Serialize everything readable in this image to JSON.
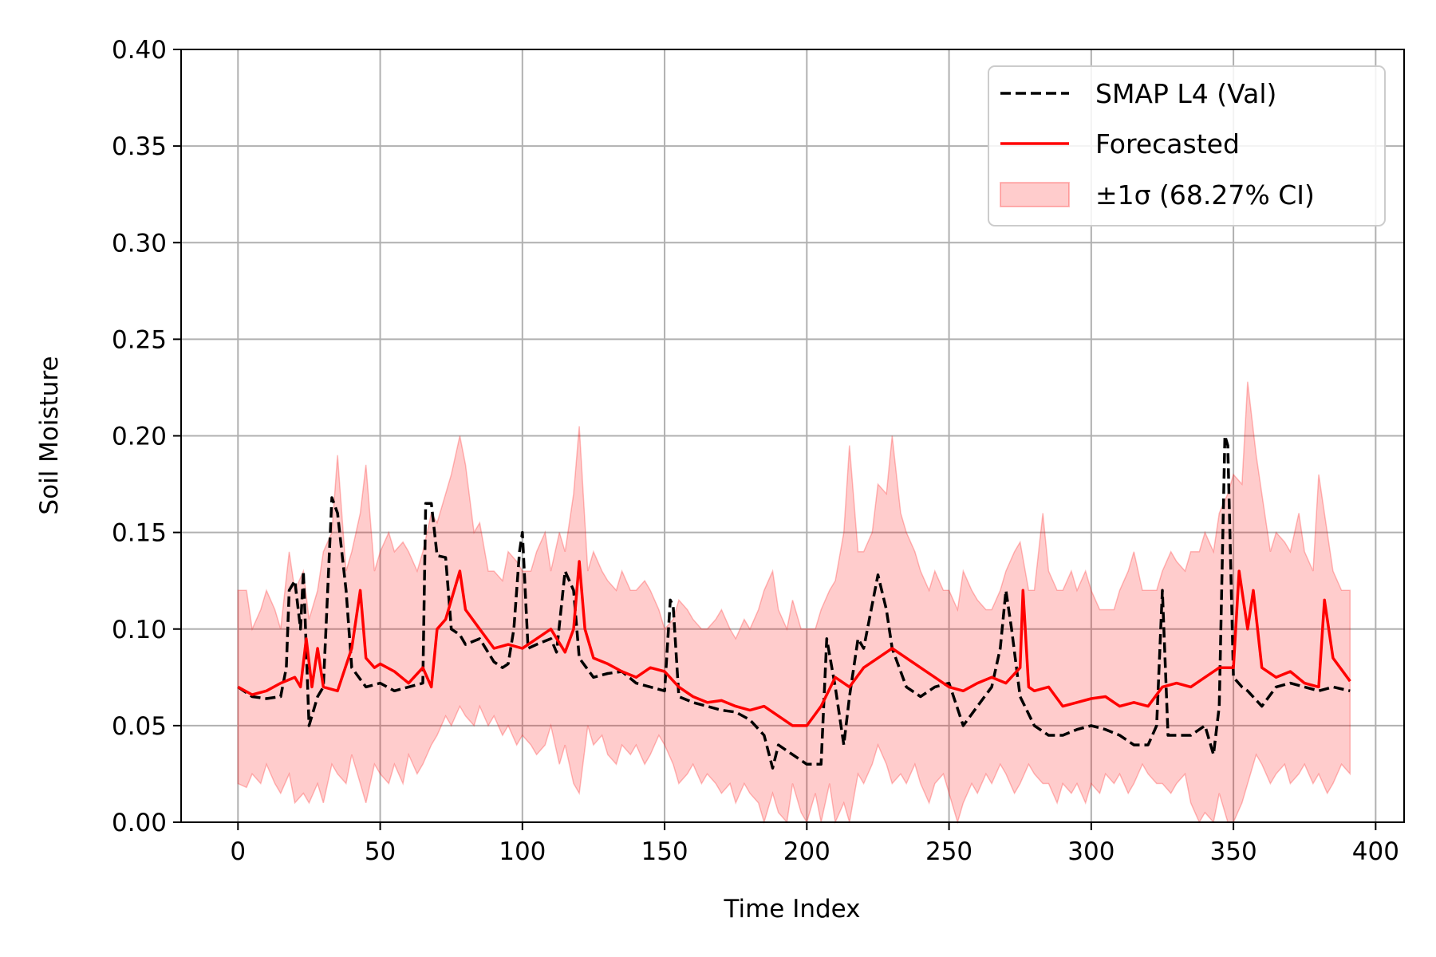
{
  "chart_data": {
    "type": "line",
    "title": "",
    "xlabel": "Time Index",
    "ylabel": "Soil Moisture",
    "xlim": [
      -20,
      410
    ],
    "ylim": [
      0.0,
      0.4
    ],
    "x_ticks": [
      0,
      50,
      100,
      150,
      200,
      250,
      300,
      350,
      400
    ],
    "y_ticks": [
      0.0,
      0.05,
      0.1,
      0.15,
      0.2,
      0.25,
      0.3,
      0.35,
      0.4
    ],
    "x_tick_labels": [
      "0",
      "50",
      "100",
      "150",
      "200",
      "250",
      "300",
      "350",
      "400"
    ],
    "y_tick_labels": [
      "0.00",
      "0.05",
      "0.10",
      "0.15",
      "0.20",
      "0.25",
      "0.30",
      "0.35",
      "0.40"
    ],
    "grid": true,
    "legend_position": "top-right",
    "colors": {
      "validation": "#000000",
      "forecast": "#ff0000",
      "band": "#ff0000"
    },
    "series": [
      {
        "name": "SMAP L4 (Val)",
        "style": "dashed",
        "x": [
          0,
          5,
          10,
          15,
          17,
          18,
          20,
          22,
          23,
          25,
          28,
          30,
          33,
          35,
          38,
          40,
          45,
          50,
          55,
          60,
          65,
          66,
          68,
          70,
          73,
          75,
          78,
          80,
          85,
          90,
          93,
          95,
          97,
          99,
          100,
          102,
          105,
          110,
          112,
          115,
          118,
          120,
          125,
          130,
          135,
          140,
          145,
          150,
          152,
          153,
          155,
          160,
          165,
          170,
          175,
          180,
          185,
          188,
          190,
          195,
          200,
          205,
          207,
          210,
          213,
          215,
          218,
          220,
          225,
          228,
          230,
          235,
          240,
          245,
          250,
          255,
          260,
          265,
          268,
          270,
          272,
          275,
          280,
          285,
          290,
          295,
          300,
          305,
          310,
          315,
          320,
          323,
          325,
          327,
          330,
          335,
          340,
          343,
          345,
          347,
          348,
          350,
          353,
          355,
          360,
          365,
          370,
          375,
          380,
          385,
          391
        ],
        "y": [
          0.07,
          0.065,
          0.064,
          0.065,
          0.08,
          0.12,
          0.125,
          0.1,
          0.13,
          0.05,
          0.065,
          0.07,
          0.168,
          0.16,
          0.12,
          0.08,
          0.07,
          0.072,
          0.068,
          0.07,
          0.072,
          0.165,
          0.165,
          0.138,
          0.137,
          0.1,
          0.097,
          0.092,
          0.095,
          0.083,
          0.08,
          0.082,
          0.1,
          0.14,
          0.15,
          0.09,
          0.092,
          0.095,
          0.088,
          0.13,
          0.12,
          0.085,
          0.075,
          0.077,
          0.078,
          0.072,
          0.07,
          0.068,
          0.115,
          0.112,
          0.065,
          0.062,
          0.06,
          0.058,
          0.057,
          0.053,
          0.045,
          0.028,
          0.04,
          0.035,
          0.03,
          0.03,
          0.095,
          0.07,
          0.04,
          0.065,
          0.095,
          0.09,
          0.128,
          0.11,
          0.09,
          0.07,
          0.065,
          0.07,
          0.072,
          0.05,
          0.06,
          0.07,
          0.09,
          0.12,
          0.1,
          0.065,
          0.05,
          0.045,
          0.045,
          0.048,
          0.05,
          0.048,
          0.045,
          0.04,
          0.04,
          0.05,
          0.12,
          0.045,
          0.045,
          0.045,
          0.05,
          0.035,
          0.06,
          0.2,
          0.195,
          0.075,
          0.07,
          0.068,
          0.06,
          0.07,
          0.072,
          0.07,
          0.068,
          0.07,
          0.068
        ]
      },
      {
        "name": "Forecasted",
        "style": "solid",
        "x": [
          0,
          5,
          10,
          15,
          20,
          22,
          24,
          26,
          28,
          30,
          35,
          40,
          43,
          45,
          48,
          50,
          55,
          60,
          65,
          68,
          70,
          73,
          75,
          78,
          80,
          85,
          90,
          95,
          100,
          105,
          110,
          115,
          118,
          120,
          122,
          125,
          130,
          135,
          140,
          145,
          150,
          155,
          160,
          165,
          170,
          175,
          180,
          185,
          190,
          195,
          200,
          205,
          210,
          215,
          220,
          225,
          230,
          235,
          240,
          245,
          250,
          255,
          260,
          265,
          270,
          275,
          276,
          278,
          280,
          285,
          290,
          295,
          300,
          305,
          310,
          315,
          320,
          325,
          330,
          335,
          340,
          345,
          350,
          352,
          355,
          357,
          360,
          365,
          370,
          375,
          380,
          382,
          385,
          391
        ],
        "y": [
          0.07,
          0.066,
          0.068,
          0.072,
          0.075,
          0.07,
          0.095,
          0.07,
          0.09,
          0.07,
          0.068,
          0.09,
          0.12,
          0.085,
          0.08,
          0.082,
          0.078,
          0.072,
          0.08,
          0.07,
          0.1,
          0.105,
          0.115,
          0.13,
          0.11,
          0.1,
          0.09,
          0.092,
          0.09,
          0.095,
          0.1,
          0.088,
          0.1,
          0.135,
          0.1,
          0.085,
          0.082,
          0.078,
          0.075,
          0.08,
          0.078,
          0.07,
          0.065,
          0.062,
          0.063,
          0.06,
          0.058,
          0.06,
          0.055,
          0.05,
          0.05,
          0.06,
          0.075,
          0.07,
          0.08,
          0.085,
          0.09,
          0.085,
          0.08,
          0.075,
          0.07,
          0.068,
          0.072,
          0.075,
          0.072,
          0.08,
          0.12,
          0.07,
          0.068,
          0.07,
          0.06,
          0.062,
          0.064,
          0.065,
          0.06,
          0.062,
          0.06,
          0.07,
          0.072,
          0.07,
          0.075,
          0.08,
          0.08,
          0.13,
          0.1,
          0.12,
          0.08,
          0.075,
          0.078,
          0.072,
          0.07,
          0.115,
          0.085,
          0.073
        ]
      },
      {
        "name": "±1σ (68.27% CI)",
        "style": "band",
        "x": [
          0,
          3,
          5,
          8,
          10,
          13,
          15,
          18,
          20,
          23,
          25,
          28,
          30,
          33,
          35,
          38,
          40,
          43,
          45,
          48,
          50,
          53,
          55,
          58,
          60,
          63,
          65,
          68,
          70,
          73,
          75,
          78,
          80,
          83,
          85,
          88,
          90,
          93,
          95,
          98,
          100,
          103,
          105,
          108,
          110,
          113,
          115,
          118,
          120,
          123,
          125,
          128,
          130,
          133,
          135,
          138,
          140,
          143,
          145,
          148,
          150,
          153,
          155,
          158,
          160,
          163,
          165,
          168,
          170,
          173,
          175,
          178,
          180,
          183,
          185,
          188,
          190,
          193,
          195,
          198,
          200,
          203,
          205,
          208,
          210,
          213,
          215,
          218,
          220,
          223,
          225,
          228,
          230,
          233,
          235,
          238,
          240,
          243,
          245,
          248,
          250,
          253,
          255,
          258,
          260,
          263,
          265,
          268,
          270,
          273,
          275,
          278,
          280,
          283,
          285,
          288,
          290,
          293,
          295,
          298,
          300,
          303,
          305,
          308,
          310,
          313,
          315,
          318,
          320,
          323,
          325,
          328,
          330,
          333,
          335,
          338,
          340,
          343,
          345,
          348,
          350,
          353,
          355,
          358,
          360,
          363,
          365,
          368,
          370,
          373,
          375,
          378,
          380,
          383,
          385,
          388,
          391
        ],
        "upper": [
          0.12,
          0.12,
          0.1,
          0.11,
          0.12,
          0.11,
          0.1,
          0.14,
          0.12,
          0.13,
          0.105,
          0.12,
          0.14,
          0.15,
          0.19,
          0.13,
          0.14,
          0.16,
          0.185,
          0.13,
          0.14,
          0.15,
          0.14,
          0.145,
          0.14,
          0.13,
          0.14,
          0.16,
          0.155,
          0.17,
          0.18,
          0.2,
          0.185,
          0.15,
          0.155,
          0.13,
          0.13,
          0.125,
          0.14,
          0.135,
          0.13,
          0.13,
          0.14,
          0.15,
          0.13,
          0.15,
          0.14,
          0.17,
          0.205,
          0.13,
          0.14,
          0.13,
          0.125,
          0.12,
          0.13,
          0.12,
          0.12,
          0.125,
          0.12,
          0.11,
          0.1,
          0.105,
          0.115,
          0.11,
          0.105,
          0.1,
          0.1,
          0.105,
          0.11,
          0.1,
          0.095,
          0.105,
          0.1,
          0.11,
          0.12,
          0.13,
          0.11,
          0.1,
          0.115,
          0.1,
          0.1,
          0.1,
          0.11,
          0.12,
          0.125,
          0.15,
          0.195,
          0.14,
          0.14,
          0.15,
          0.175,
          0.17,
          0.2,
          0.16,
          0.15,
          0.14,
          0.13,
          0.12,
          0.13,
          0.12,
          0.12,
          0.11,
          0.13,
          0.12,
          0.115,
          0.11,
          0.11,
          0.12,
          0.13,
          0.14,
          0.145,
          0.12,
          0.12,
          0.16,
          0.13,
          0.12,
          0.12,
          0.13,
          0.12,
          0.13,
          0.12,
          0.11,
          0.11,
          0.11,
          0.12,
          0.13,
          0.14,
          0.12,
          0.12,
          0.12,
          0.13,
          0.14,
          0.135,
          0.13,
          0.14,
          0.14,
          0.15,
          0.14,
          0.16,
          0.17,
          0.18,
          0.175,
          0.228,
          0.19,
          0.17,
          0.14,
          0.15,
          0.145,
          0.14,
          0.16,
          0.14,
          0.13,
          0.18,
          0.15,
          0.13,
          0.12,
          0.12
        ],
        "lower": [
          0.02,
          0.018,
          0.025,
          0.02,
          0.03,
          0.02,
          0.015,
          0.025,
          0.01,
          0.015,
          0.01,
          0.02,
          0.01,
          0.03,
          0.025,
          0.02,
          0.035,
          0.02,
          0.01,
          0.03,
          0.025,
          0.02,
          0.03,
          0.02,
          0.035,
          0.025,
          0.03,
          0.04,
          0.045,
          0.055,
          0.05,
          0.06,
          0.055,
          0.05,
          0.06,
          0.05,
          0.055,
          0.045,
          0.05,
          0.04,
          0.045,
          0.04,
          0.035,
          0.04,
          0.05,
          0.03,
          0.04,
          0.02,
          0.015,
          0.05,
          0.04,
          0.045,
          0.035,
          0.03,
          0.04,
          0.035,
          0.04,
          0.03,
          0.035,
          0.045,
          0.04,
          0.03,
          0.02,
          0.025,
          0.03,
          0.02,
          0.025,
          0.02,
          0.015,
          0.02,
          0.01,
          0.02,
          0.015,
          0.01,
          0.0,
          0.015,
          0.005,
          0.0,
          0.02,
          0.005,
          0.0,
          0.015,
          0.0,
          0.02,
          0.0,
          0.01,
          0.0,
          0.025,
          0.02,
          0.03,
          0.04,
          0.03,
          0.02,
          0.025,
          0.02,
          0.03,
          0.02,
          0.01,
          0.02,
          0.025,
          0.015,
          0.0,
          0.01,
          0.02,
          0.015,
          0.025,
          0.02,
          0.03,
          0.025,
          0.015,
          0.02,
          0.03,
          0.025,
          0.02,
          0.02,
          0.01,
          0.02,
          0.015,
          0.02,
          0.01,
          0.02,
          0.015,
          0.025,
          0.02,
          0.025,
          0.015,
          0.02,
          0.03,
          0.025,
          0.02,
          0.02,
          0.015,
          0.02,
          0.025,
          0.01,
          0.0,
          0.005,
          0.0,
          0.015,
          0.0,
          0.0,
          0.01,
          0.02,
          0.035,
          0.03,
          0.02,
          0.025,
          0.03,
          0.02,
          0.025,
          0.03,
          0.02,
          0.025,
          0.015,
          0.02,
          0.03,
          0.025
        ]
      }
    ]
  }
}
